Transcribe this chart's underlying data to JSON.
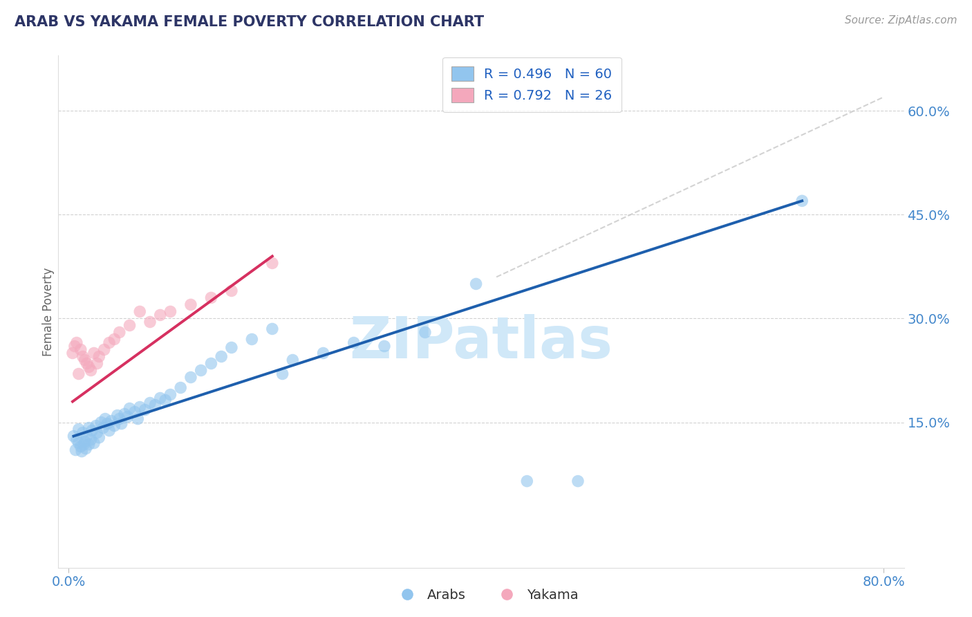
{
  "title": "ARAB VS YAKAMA FEMALE POVERTY CORRELATION CHART",
  "source": "Source: ZipAtlas.com",
  "ylabel": "Female Poverty",
  "xlim": [
    -0.01,
    0.82
  ],
  "ylim": [
    -0.06,
    0.68
  ],
  "xtick_positions": [
    0.0,
    0.8
  ],
  "xticklabels": [
    "0.0%",
    "80.0%"
  ],
  "ytick_positions": [
    0.15,
    0.3,
    0.45,
    0.6
  ],
  "ytick_labels": [
    "15.0%",
    "30.0%",
    "45.0%",
    "60.0%"
  ],
  "arab_R": 0.496,
  "arab_N": 60,
  "yakama_R": 0.792,
  "yakama_N": 26,
  "arab_color": "#92C5EE",
  "yakama_color": "#F4A8BC",
  "arab_line_color": "#1E5FAD",
  "yakama_line_color": "#D63060",
  "ref_line_color": "#C8C8C8",
  "title_color": "#2D3566",
  "axis_label_color": "#4488CC",
  "legend_text_color": "#2060C0",
  "grid_color": "#CCCCCC",
  "background_color": "#FFFFFF",
  "arab_x": [
    0.005,
    0.007,
    0.008,
    0.01,
    0.01,
    0.012,
    0.013,
    0.014,
    0.015,
    0.016,
    0.017,
    0.018,
    0.02,
    0.02,
    0.022,
    0.023,
    0.025,
    0.027,
    0.028,
    0.03,
    0.032,
    0.034,
    0.036,
    0.038,
    0.04,
    0.042,
    0.045,
    0.048,
    0.05,
    0.052,
    0.055,
    0.058,
    0.06,
    0.065,
    0.068,
    0.07,
    0.075,
    0.08,
    0.085,
    0.09,
    0.095,
    0.1,
    0.11,
    0.12,
    0.13,
    0.14,
    0.15,
    0.16,
    0.18,
    0.2,
    0.21,
    0.22,
    0.25,
    0.28,
    0.31,
    0.35,
    0.4,
    0.45,
    0.5,
    0.72
  ],
  "arab_y": [
    0.13,
    0.11,
    0.125,
    0.12,
    0.14,
    0.115,
    0.108,
    0.135,
    0.118,
    0.122,
    0.112,
    0.13,
    0.118,
    0.142,
    0.125,
    0.138,
    0.12,
    0.145,
    0.135,
    0.128,
    0.15,
    0.142,
    0.155,
    0.148,
    0.138,
    0.152,
    0.145,
    0.16,
    0.155,
    0.148,
    0.162,
    0.158,
    0.17,
    0.165,
    0.155,
    0.172,
    0.168,
    0.178,
    0.175,
    0.185,
    0.182,
    0.19,
    0.2,
    0.215,
    0.225,
    0.235,
    0.245,
    0.258,
    0.27,
    0.285,
    0.22,
    0.24,
    0.25,
    0.265,
    0.26,
    0.28,
    0.35,
    0.065,
    0.065,
    0.47
  ],
  "yakama_x": [
    0.004,
    0.006,
    0.008,
    0.01,
    0.012,
    0.014,
    0.016,
    0.018,
    0.02,
    0.022,
    0.025,
    0.028,
    0.03,
    0.035,
    0.04,
    0.045,
    0.05,
    0.06,
    0.07,
    0.08,
    0.09,
    0.1,
    0.12,
    0.14,
    0.16,
    0.2
  ],
  "yakama_y": [
    0.25,
    0.26,
    0.265,
    0.22,
    0.255,
    0.245,
    0.24,
    0.235,
    0.23,
    0.225,
    0.25,
    0.235,
    0.245,
    0.255,
    0.265,
    0.27,
    0.28,
    0.29,
    0.31,
    0.295,
    0.305,
    0.31,
    0.32,
    0.33,
    0.34,
    0.38
  ],
  "ref_line_x": [
    0.42,
    0.8
  ],
  "ref_line_y": [
    0.36,
    0.62
  ],
  "watermark": "ZIPatlas",
  "watermark_color": "#D0E8F8",
  "blue_line_x": [
    0.005,
    0.72
  ],
  "blue_line_y": [
    0.13,
    0.47
  ],
  "pink_line_x": [
    0.004,
    0.2
  ],
  "pink_line_y": [
    0.18,
    0.39
  ]
}
